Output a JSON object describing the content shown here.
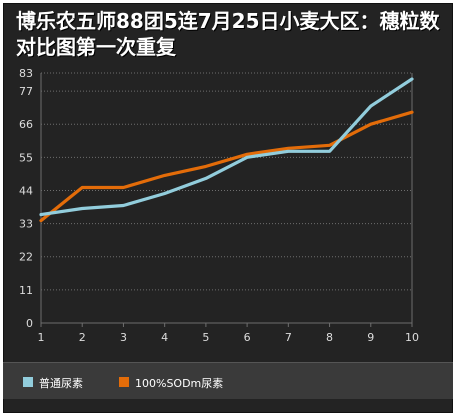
{
  "chart_data": {
    "type": "line",
    "title": "博乐农五师88团5连7月25日小麦大区：穗粒数对比图第一次重复",
    "x": [
      1,
      2,
      3,
      4,
      5,
      6,
      7,
      8,
      9,
      10
    ],
    "yticks": [
      0,
      11,
      22,
      33,
      44,
      55,
      66,
      77,
      83
    ],
    "ylim": [
      0,
      83
    ],
    "grid": true,
    "legend_position": "bottom",
    "series": [
      {
        "name": "普通尿素",
        "color": "#92cddc",
        "values": [
          36,
          38,
          39,
          43,
          48,
          55,
          57,
          57,
          72,
          81
        ]
      },
      {
        "name": "100%SODm尿素",
        "color": "#e36c09",
        "values": [
          34,
          45,
          45,
          49,
          52,
          56,
          58,
          59,
          66,
          70
        ]
      }
    ]
  },
  "colors": {
    "background": "#232323",
    "grid": "#6e6e6e",
    "axis_text": "#dddddd",
    "title_text": "#ffffff"
  }
}
